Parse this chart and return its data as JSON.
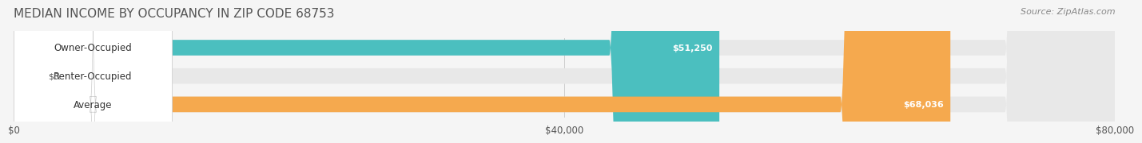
{
  "title": "MEDIAN INCOME BY OCCUPANCY IN ZIP CODE 68753",
  "source": "Source: ZipAtlas.com",
  "categories": [
    "Owner-Occupied",
    "Renter-Occupied",
    "Average"
  ],
  "values": [
    51250,
    0,
    68036
  ],
  "bar_colors": [
    "#4bbfbf",
    "#c9a8d4",
    "#f5a94e"
  ],
  "bg_bar_color": "#e8e8e8",
  "label_bg_color": "#ffffff",
  "xlim": [
    0,
    80000
  ],
  "xticks": [
    0,
    40000,
    80000
  ],
  "xtick_labels": [
    "$0",
    "$40,000",
    "$80,000"
  ],
  "value_labels": [
    "$51,250",
    "$0",
    "$68,036"
  ],
  "title_fontsize": 11,
  "source_fontsize": 8,
  "bar_label_fontsize": 8.5,
  "tick_fontsize": 8.5,
  "value_fontsize": 8,
  "bar_height": 0.55,
  "background_color": "#f5f5f5"
}
